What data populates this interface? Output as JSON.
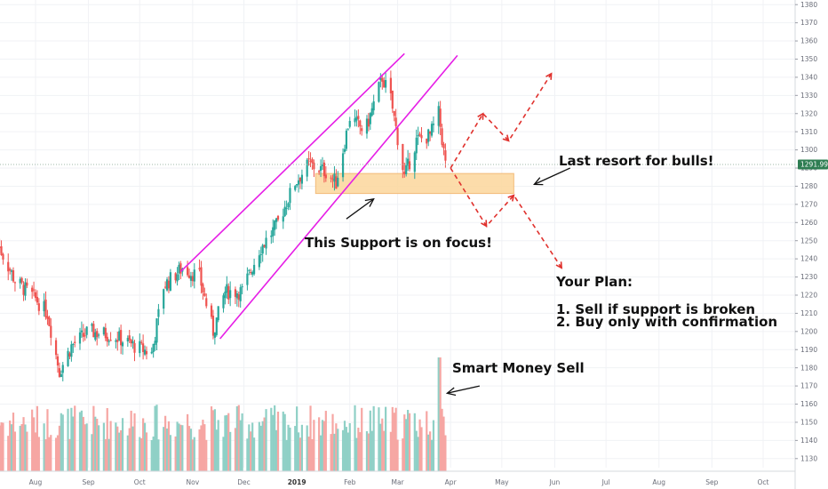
{
  "chart_data": {
    "type": "candlestick",
    "y_axis": {
      "ylim": [
        1125,
        1385
      ],
      "ticks": [
        1130,
        1140,
        1150,
        1160,
        1170,
        1180,
        1190,
        1200,
        1210,
        1220,
        1230,
        1240,
        1250,
        1260,
        1270,
        1280,
        1290,
        1300,
        1310,
        1320,
        1330,
        1340,
        1350,
        1360,
        1370,
        1380
      ],
      "position": "right"
    },
    "x_axis": {
      "labels": [
        {
          "text": "Aug",
          "date": "2018-08-01",
          "bold": false
        },
        {
          "text": "Sep",
          "date": "2018-09-01",
          "bold": false
        },
        {
          "text": "Oct",
          "date": "2018-10-01",
          "bold": false
        },
        {
          "text": "Nov",
          "date": "2018-11-01",
          "bold": false
        },
        {
          "text": "Dec",
          "date": "2018-12-01",
          "bold": false
        },
        {
          "text": "2019",
          "date": "2019-01-01",
          "bold": true
        },
        {
          "text": "Feb",
          "date": "2019-02-01",
          "bold": false
        },
        {
          "text": "Mar",
          "date": "2019-03-01",
          "bold": false
        },
        {
          "text": "Apr",
          "date": "2019-04-01",
          "bold": false
        },
        {
          "text": "May",
          "date": "2019-05-01",
          "bold": false
        },
        {
          "text": "Jun",
          "date": "2019-06-01",
          "bold": false
        },
        {
          "text": "Jul",
          "date": "2019-07-01",
          "bold": false
        },
        {
          "text": "Aug",
          "date": "2019-08-01",
          "bold": false
        },
        {
          "text": "Sep",
          "date": "2019-09-01",
          "bold": false
        },
        {
          "text": "Oct",
          "date": "2019-10-01",
          "bold": false
        }
      ]
    },
    "price_anchors": [
      {
        "date": "2018-07-10",
        "price": 1248
      },
      {
        "date": "2018-07-20",
        "price": 1228
      },
      {
        "date": "2018-08-01",
        "price": 1218
      },
      {
        "date": "2018-08-08",
        "price": 1210
      },
      {
        "date": "2018-08-15",
        "price": 1178
      },
      {
        "date": "2018-08-22",
        "price": 1192
      },
      {
        "date": "2018-09-01",
        "price": 1200
      },
      {
        "date": "2018-09-15",
        "price": 1198
      },
      {
        "date": "2018-09-28",
        "price": 1192
      },
      {
        "date": "2018-10-08",
        "price": 1188
      },
      {
        "date": "2018-10-15",
        "price": 1225
      },
      {
        "date": "2018-10-26",
        "price": 1235
      },
      {
        "date": "2018-11-05",
        "price": 1230
      },
      {
        "date": "2018-11-13",
        "price": 1200
      },
      {
        "date": "2018-11-20",
        "price": 1222
      },
      {
        "date": "2018-11-30",
        "price": 1222
      },
      {
        "date": "2018-12-10",
        "price": 1245
      },
      {
        "date": "2018-12-20",
        "price": 1258
      },
      {
        "date": "2018-12-31",
        "price": 1282
      },
      {
        "date": "2019-01-08",
        "price": 1292
      },
      {
        "date": "2019-01-18",
        "price": 1288
      },
      {
        "date": "2019-01-24",
        "price": 1282
      },
      {
        "date": "2019-02-01",
        "price": 1318
      },
      {
        "date": "2019-02-10",
        "price": 1310
      },
      {
        "date": "2019-02-20",
        "price": 1340
      },
      {
        "date": "2019-02-25",
        "price": 1328
      },
      {
        "date": "2019-03-05",
        "price": 1285
      },
      {
        "date": "2019-03-12",
        "price": 1305
      },
      {
        "date": "2019-03-20",
        "price": 1308
      },
      {
        "date": "2019-03-25",
        "price": 1320
      },
      {
        "date": "2019-03-29",
        "price": 1292
      }
    ],
    "volume_spike": {
      "date": "2019-03-25"
    },
    "current_price": {
      "value": 1291.99,
      "label": "1291.99",
      "color": "#2e7d52"
    },
    "support_zone": {
      "y_low": 1276,
      "y_high": 1287,
      "x_start": "2019-01-12",
      "x_end": "2019-05-08",
      "fill": "#fcd9a1",
      "stroke": "#f2b46b"
    },
    "channel_lines": [
      {
        "points": [
          {
            "date": "2018-10-25",
            "price": 1233
          },
          {
            "date": "2019-03-05",
            "price": 1353
          }
        ]
      },
      {
        "points": [
          {
            "date": "2018-11-17",
            "price": 1196
          },
          {
            "date": "2019-04-05",
            "price": 1352
          }
        ]
      }
    ],
    "projection_paths": [
      {
        "points": [
          {
            "date": "2019-04-01",
            "price": 1290
          },
          {
            "date": "2019-04-20",
            "price": 1320
          },
          {
            "date": "2019-05-05",
            "price": 1305
          },
          {
            "date": "2019-05-30",
            "price": 1342
          }
        ]
      },
      {
        "points": [
          {
            "date": "2019-04-01",
            "price": 1290
          },
          {
            "date": "2019-04-22",
            "price": 1258
          },
          {
            "date": "2019-05-08",
            "price": 1275
          },
          {
            "date": "2019-06-05",
            "price": 1235
          }
        ]
      }
    ],
    "annotation_arrows": [
      {
        "from": {
          "date": "2019-01-30",
          "price": 1262
        },
        "to": {
          "date": "2019-02-15",
          "price": 1273
        }
      },
      {
        "from": {
          "date": "2019-06-10",
          "price": 1290
        },
        "to": {
          "date": "2019-05-20",
          "price": 1281
        }
      },
      {
        "from": {
          "date": "2019-04-18",
          "price": 1170
        },
        "to": {
          "date": "2019-03-30",
          "price": 1166
        }
      }
    ],
    "colors": {
      "up": "#26a69a",
      "down": "#ef5350",
      "vol_up": "#8fd0c6",
      "vol_down": "#f6a6a3",
      "channel": "#e61ee6",
      "projection": "#e0312d"
    },
    "grid": true
  },
  "annotations": {
    "support_label": "This Support is on focus!",
    "bulls_label": "Last resort for bulls!",
    "plan_title": "Your Plan:",
    "plan_item_1": "1. Sell if support is broken",
    "plan_item_2": "2. Buy only with confirmation",
    "smart_money": "Smart Money Sell"
  }
}
